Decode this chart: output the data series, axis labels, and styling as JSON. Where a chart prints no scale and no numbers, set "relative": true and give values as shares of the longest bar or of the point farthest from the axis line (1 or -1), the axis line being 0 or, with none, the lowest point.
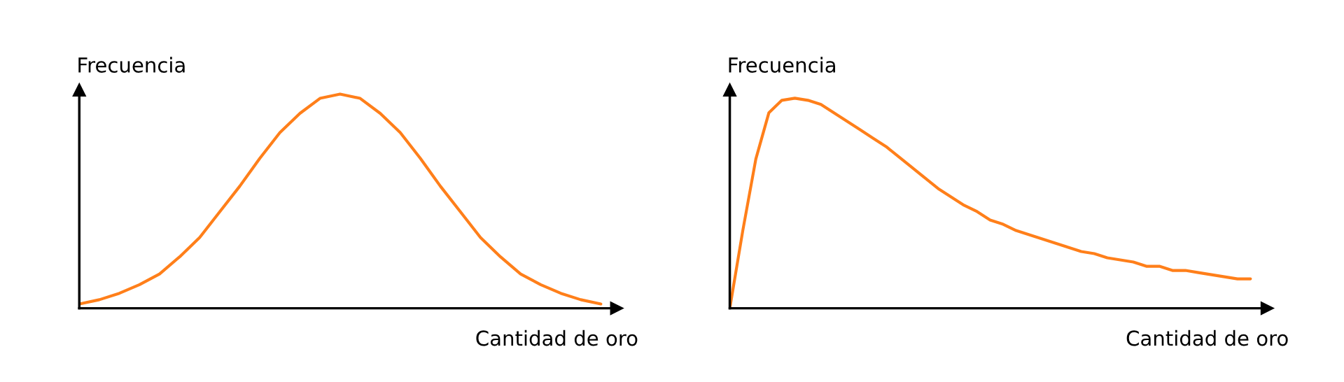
{
  "chart_data": [
    {
      "type": "line",
      "relative": true,
      "xlabel": "Cantidad de oro",
      "ylabel": "Frecuencia",
      "categories": [
        null,
        null,
        null,
        null,
        null,
        null,
        null,
        null,
        null,
        null,
        null,
        null,
        null,
        null,
        null,
        null,
        null,
        null,
        null,
        null,
        null,
        null,
        null,
        null,
        null,
        null,
        null
      ],
      "series": [
        {
          "color": "#ff7f1a",
          "values": [
            0.02,
            0.04,
            0.07,
            0.11,
            0.16,
            0.24,
            0.33,
            0.45,
            0.57,
            0.7,
            0.82,
            0.91,
            0.98,
            1.0,
            0.98,
            0.91,
            0.82,
            0.7,
            0.57,
            0.45,
            0.33,
            0.24,
            0.16,
            0.11,
            0.07,
            0.04,
            0.02
          ]
        }
      ]
    },
    {
      "type": "line",
      "relative": true,
      "xlabel": "Cantidad de oro",
      "ylabel": "Frecuencia",
      "categories": [
        null,
        null,
        null,
        null,
        null,
        null,
        null,
        null,
        null,
        null,
        null,
        null,
        null,
        null,
        null,
        null,
        null,
        null,
        null,
        null,
        null,
        null,
        null,
        null,
        null,
        null,
        null,
        null,
        null,
        null,
        null,
        null,
        null,
        null,
        null,
        null,
        null,
        null,
        null,
        null,
        null
      ],
      "series": [
        {
          "color": "#ff7f1a",
          "values": [
            0,
            0.37,
            0.71,
            0.93,
            0.99,
            1.0,
            0.99,
            0.97,
            0.93,
            0.89,
            0.85,
            0.81,
            0.77,
            0.72,
            0.67,
            0.62,
            0.57,
            0.53,
            0.49,
            0.46,
            0.42,
            0.4,
            0.37,
            0.35,
            0.33,
            0.31,
            0.29,
            0.27,
            0.26,
            0.24,
            0.23,
            0.22,
            0.2,
            0.2,
            0.18,
            0.18,
            0.17,
            0.16,
            0.15,
            0.14,
            0.14
          ]
        }
      ]
    }
  ]
}
